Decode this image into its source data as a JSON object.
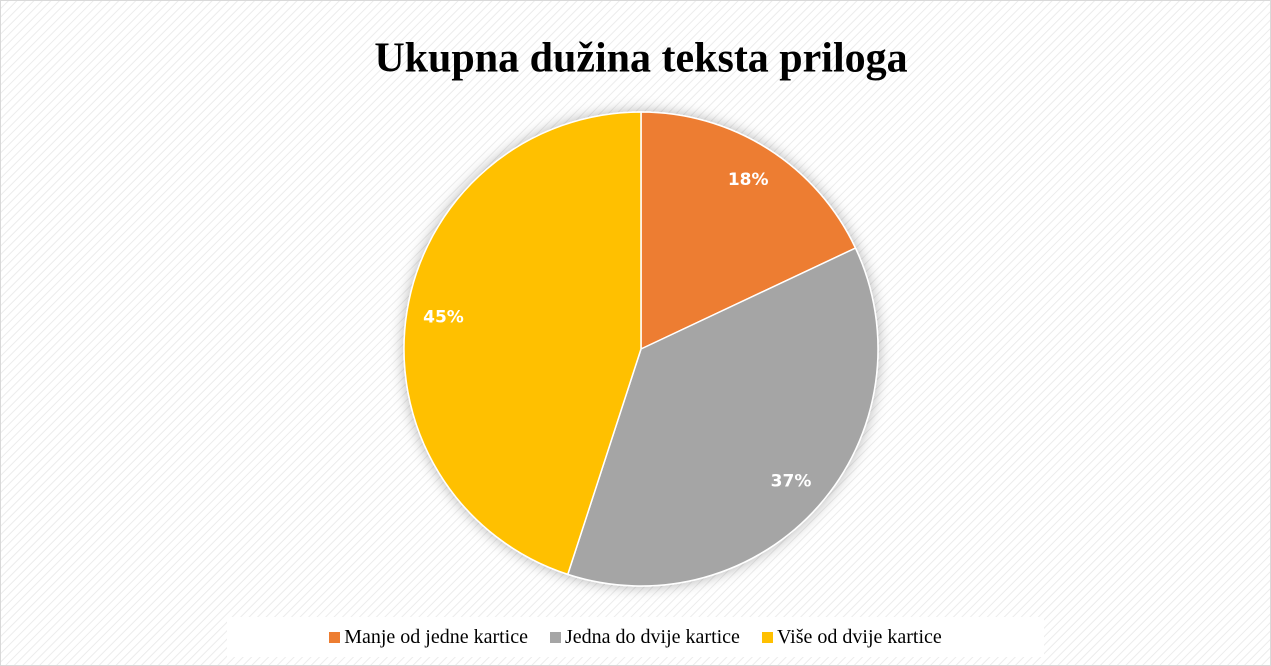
{
  "chart_data": {
    "type": "pie",
    "title": "Ukupna dužina teksta priloga",
    "categories": [
      "Manje od jedne kartice",
      "Jedna do dvije kartice",
      "Više od dvije kartice"
    ],
    "values": [
      18,
      37,
      45
    ],
    "value_labels": [
      "18%",
      "37%",
      "45%"
    ],
    "colors": [
      "#ed7d31",
      "#a5a5a5",
      "#ffc000"
    ]
  }
}
